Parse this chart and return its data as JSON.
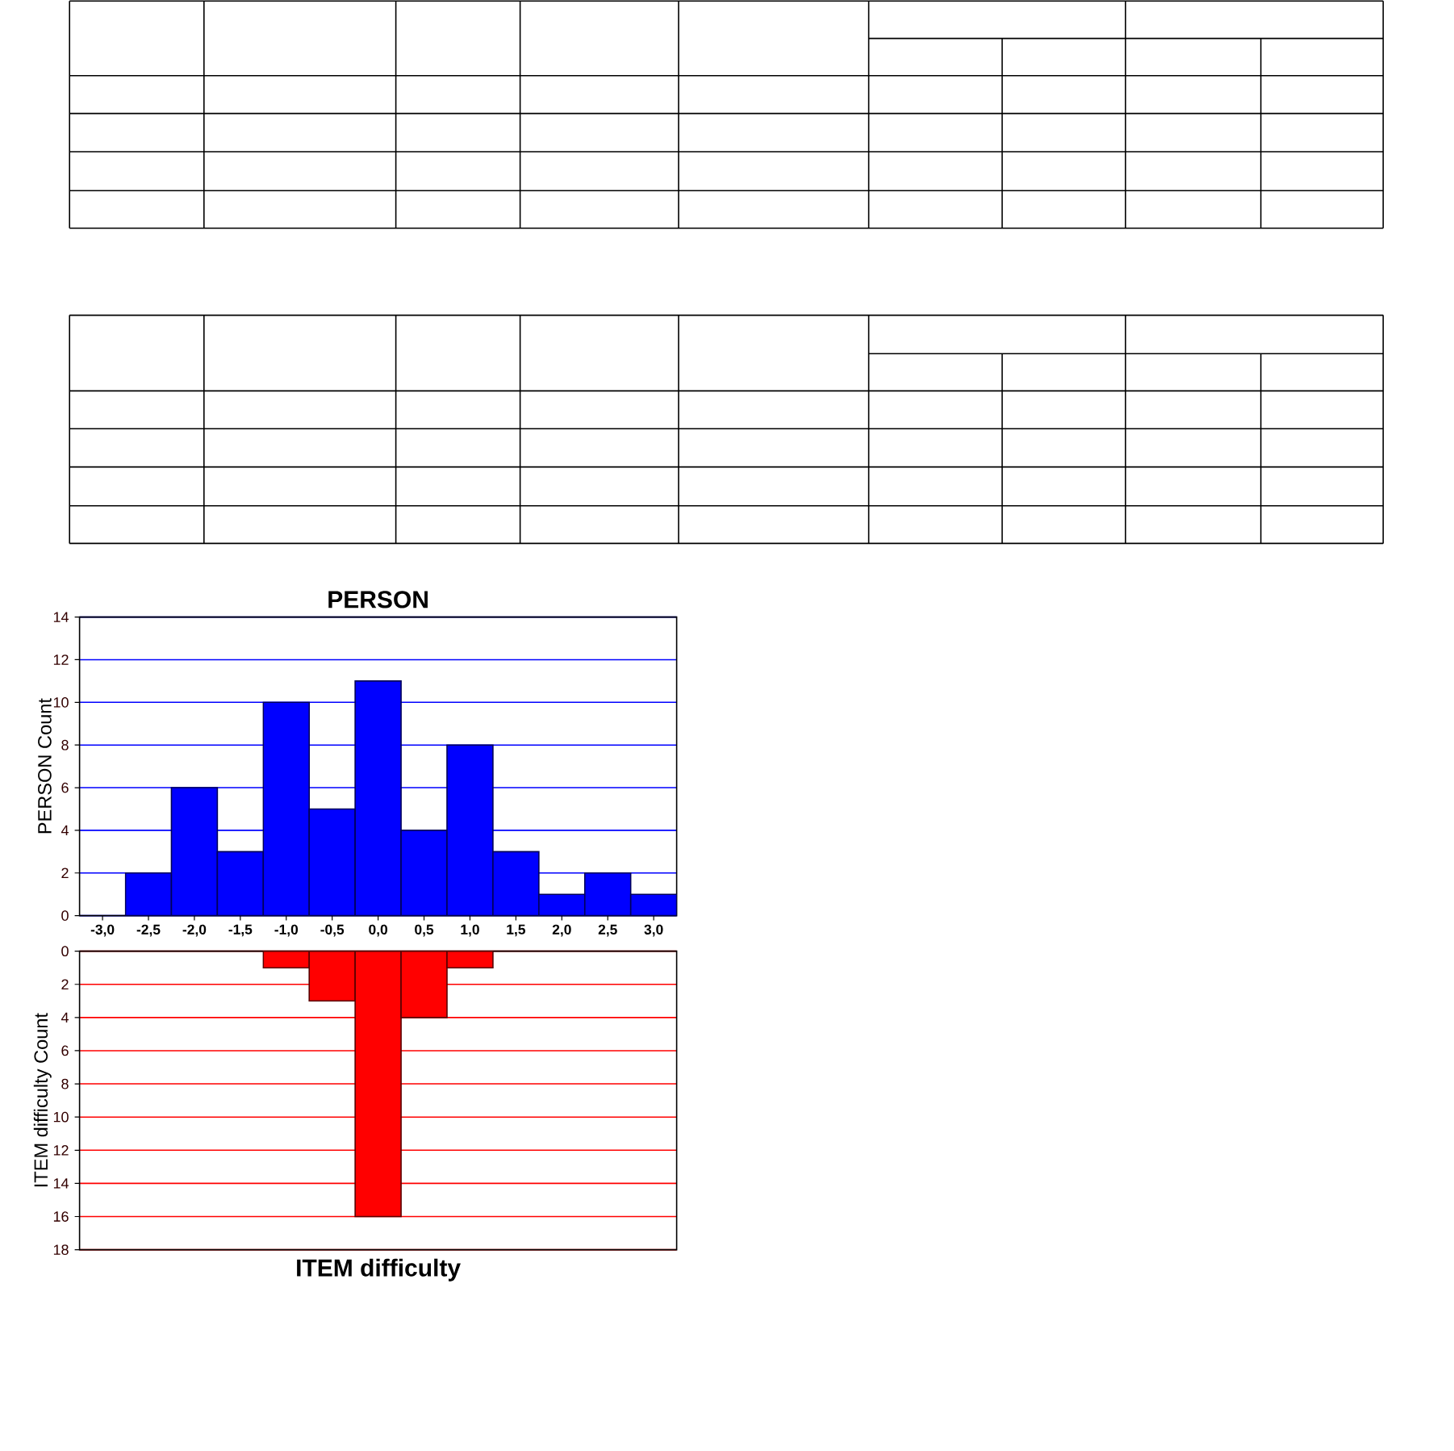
{
  "chart_data": [
    {
      "type": "histogram",
      "title": "PERSON",
      "ylabel": "PERSON Count",
      "bins": [
        -2.75,
        -2.25,
        -1.75,
        -1.25,
        -0.75,
        -0.25,
        0.25,
        0.75,
        1.25,
        1.75,
        2.25,
        2.75,
        3.25
      ],
      "values": [
        2,
        6,
        3,
        10,
        5,
        11,
        4,
        8,
        3,
        1,
        2,
        1
      ],
      "color": "#0000ff",
      "xlim": [
        -3.25,
        3.25
      ],
      "xticks": [
        {
          "value": -3,
          "label": "-3,0"
        },
        {
          "value": -2.5,
          "label": "-2,5"
        },
        {
          "value": -2,
          "label": "-2,0"
        },
        {
          "value": -1.5,
          "label": "-1,5"
        },
        {
          "value": -1,
          "label": "-1,0"
        },
        {
          "value": -0.5,
          "label": "-0,5"
        },
        {
          "value": 0,
          "label": "0,0"
        },
        {
          "value": 0.5,
          "label": "0,5"
        },
        {
          "value": 1,
          "label": "1,0"
        },
        {
          "value": 1.5,
          "label": "1,5"
        },
        {
          "value": 2,
          "label": "2,0"
        },
        {
          "value": 2.5,
          "label": "2,5"
        },
        {
          "value": 3,
          "label": "3,0"
        }
      ],
      "ylim": [
        0,
        14
      ],
      "yticks": [
        0,
        2,
        4,
        6,
        8,
        10,
        12,
        14
      ],
      "grid": "y"
    },
    {
      "type": "histogram",
      "xlabel": "ITEM difficulty",
      "ylabel": "ITEM difficulty Count",
      "bins": [
        -1.25,
        -0.75,
        -0.25,
        0.25,
        0.75,
        1.25
      ],
      "values": [
        1,
        3,
        16,
        4,
        1
      ],
      "color": "#ff0000",
      "xlim": [
        -3.25,
        3.25
      ],
      "ylim": [
        18,
        0
      ],
      "yticks": [
        0,
        2,
        4,
        6,
        8,
        10,
        12,
        14,
        16,
        18
      ],
      "grid": "y",
      "tick_labels": "y"
    }
  ]
}
